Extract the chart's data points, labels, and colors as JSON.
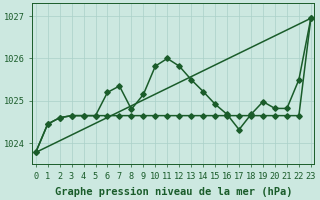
{
  "title": "Graphe pression niveau de la mer (hPa)",
  "xlabel_ticks": [
    0,
    1,
    2,
    3,
    4,
    5,
    6,
    7,
    8,
    9,
    10,
    11,
    12,
    13,
    14,
    15,
    16,
    17,
    18,
    19,
    20,
    21,
    22,
    23
  ],
  "ylim": [
    1023.5,
    1027.3
  ],
  "xlim": [
    -0.3,
    23.3
  ],
  "yticks": [
    1024,
    1025,
    1026,
    1027
  ],
  "background_color": "#cce8e0",
  "grid_color": "#aad0c8",
  "line_color": "#1a5c2a",
  "line1_x": [
    0,
    1,
    2,
    3,
    4,
    5,
    6,
    7,
    8,
    9,
    10,
    11,
    12,
    13,
    14,
    15,
    16,
    17,
    18,
    19,
    20,
    21,
    22,
    23
  ],
  "line1_y": [
    1023.78,
    1024.45,
    1024.6,
    1024.65,
    1024.65,
    1024.65,
    1025.2,
    1025.35,
    1024.8,
    1025.15,
    1025.82,
    1026.0,
    1025.82,
    1025.5,
    1025.22,
    1024.92,
    1024.68,
    1024.32,
    1024.68,
    1024.98,
    1024.82,
    1024.82,
    1025.5,
    1026.95
  ],
  "line2_x": [
    0,
    1,
    2,
    3,
    4,
    5,
    6,
    7,
    8,
    9,
    10,
    11,
    12,
    13,
    14,
    15,
    16,
    17,
    18,
    19,
    20,
    21,
    22,
    23
  ],
  "line2_y": [
    1023.78,
    1024.45,
    1024.6,
    1024.65,
    1024.65,
    1024.65,
    1024.65,
    1024.65,
    1024.65,
    1024.65,
    1024.65,
    1024.65,
    1024.65,
    1024.65,
    1024.65,
    1024.65,
    1024.65,
    1024.65,
    1024.65,
    1024.65,
    1024.65,
    1024.65,
    1024.65,
    1026.95
  ],
  "line3_x": [
    0,
    23
  ],
  "line3_y": [
    1023.78,
    1026.95
  ],
  "marker": "D",
  "markersize": 2.8,
  "linewidth": 1.1,
  "title_fontsize": 7.5,
  "tick_fontsize": 6.2
}
